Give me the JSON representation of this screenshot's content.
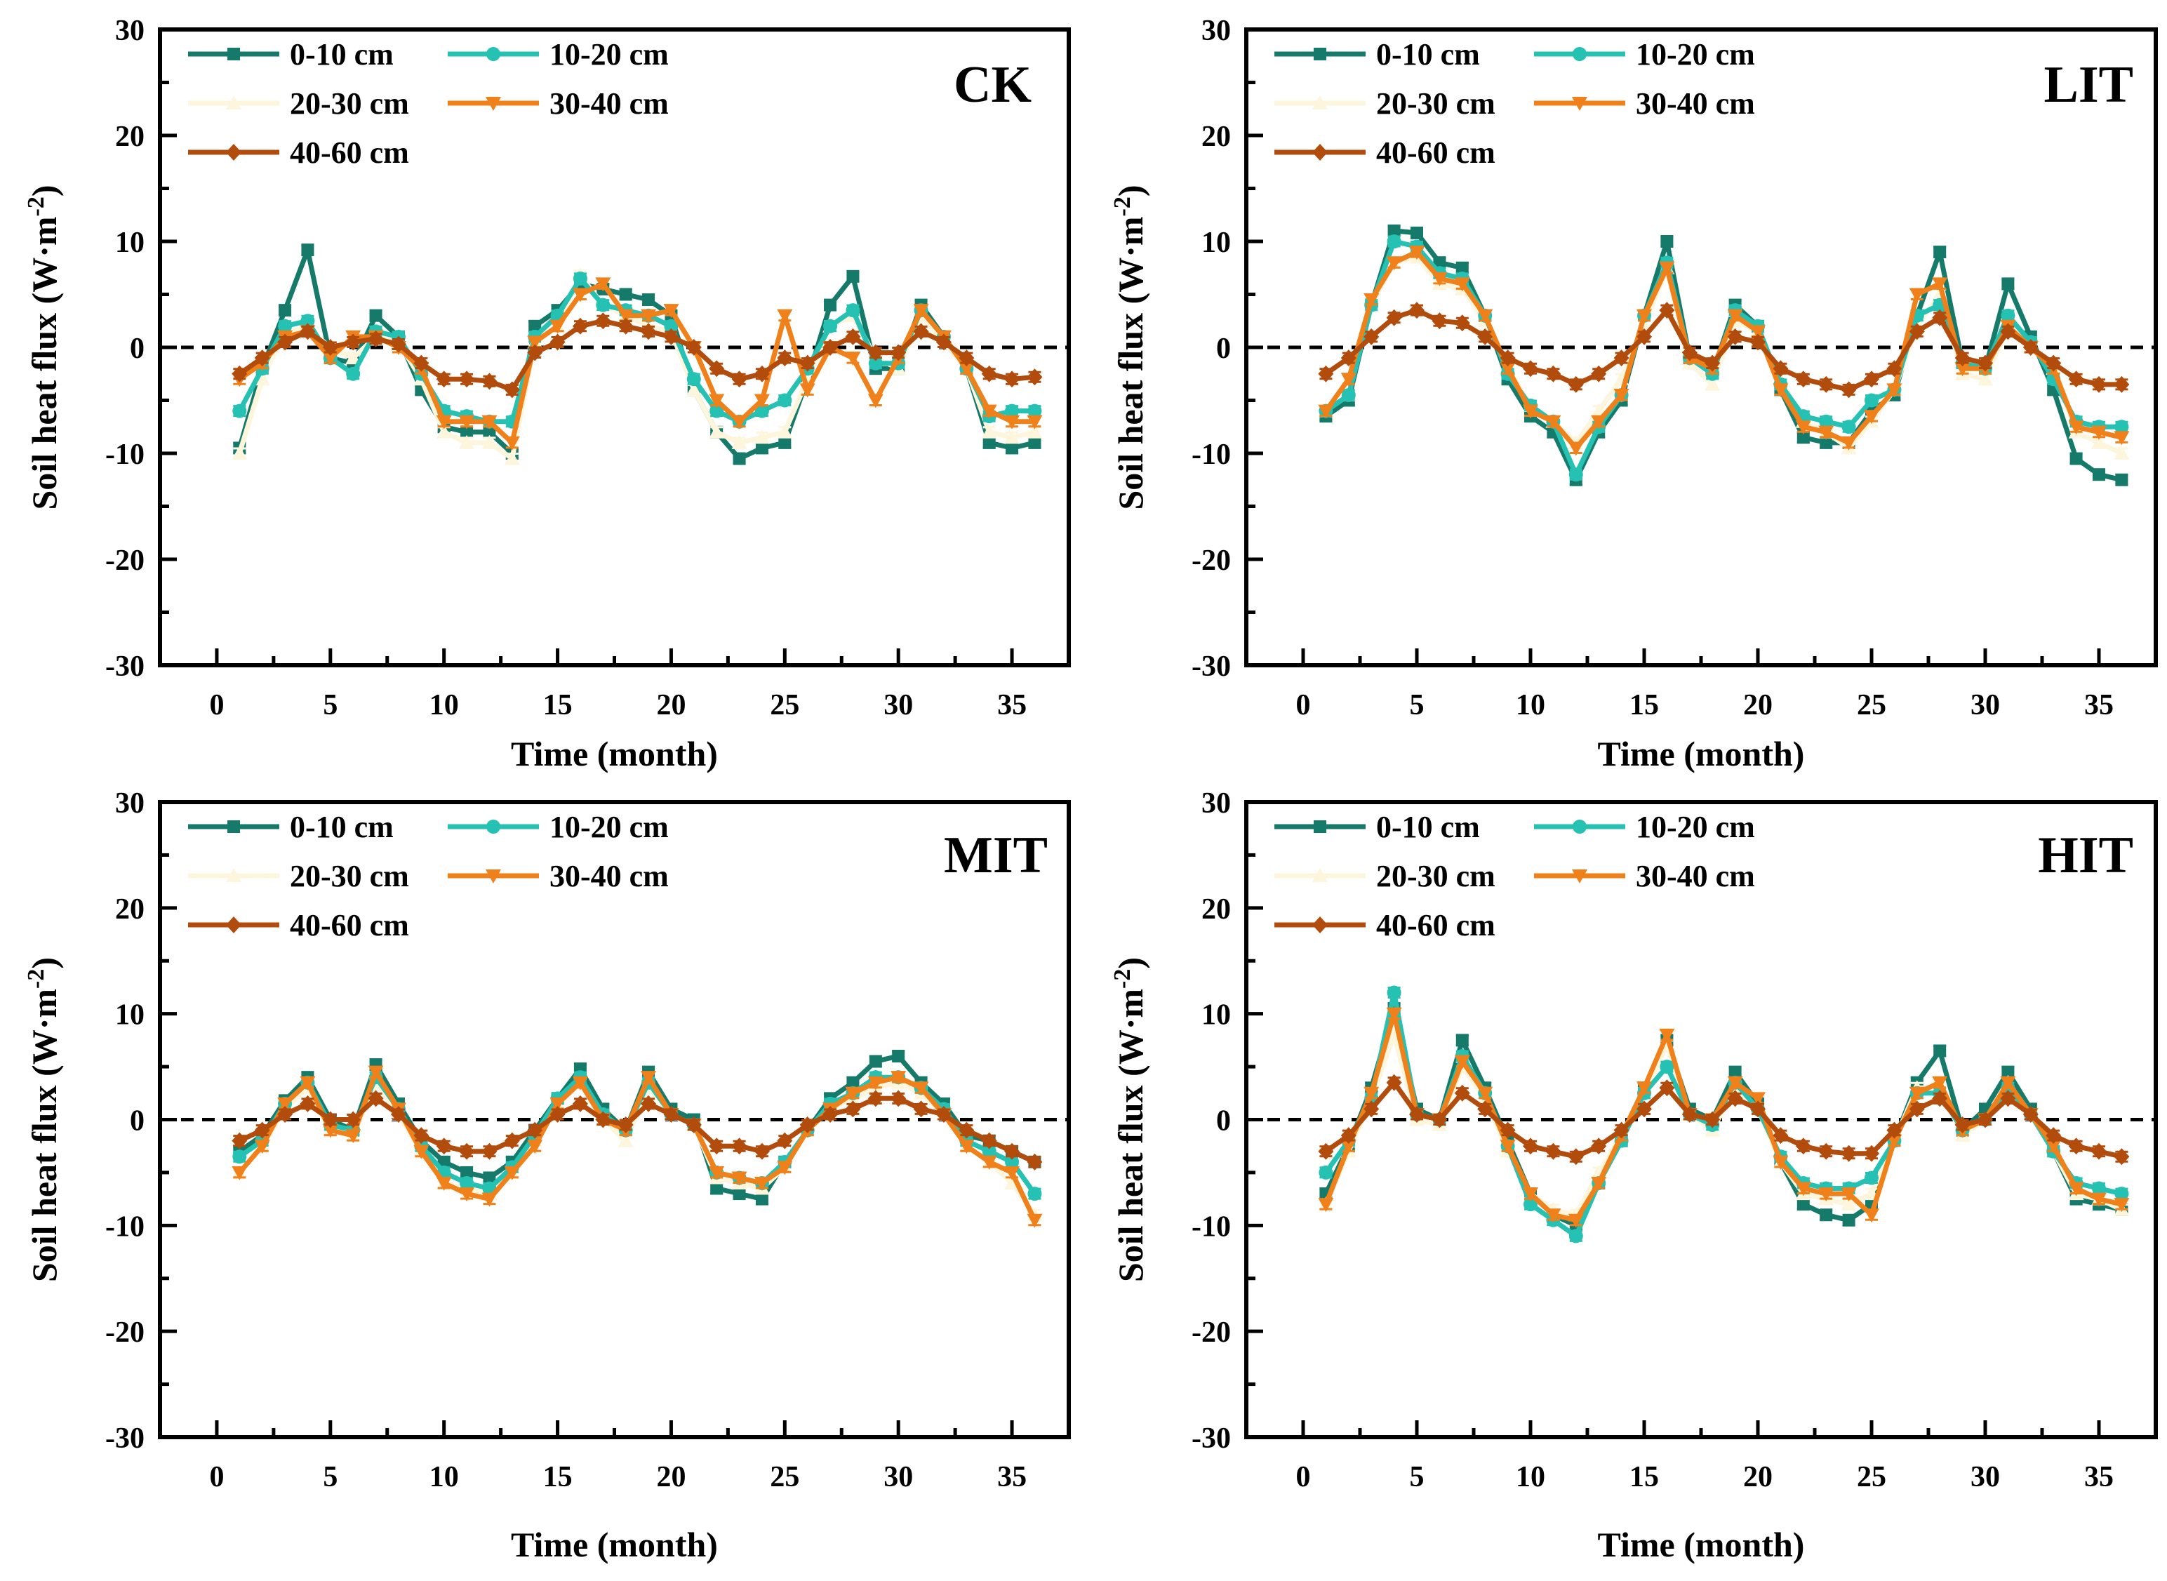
{
  "colors": {
    "0-10 cm": "#167a6b",
    "10-20 cm": "#25c1b3",
    "20-30 cm": "#fdf5dc",
    "30-40 cm": "#f08019",
    "40-60 cm": "#b24c0c"
  },
  "chart_data": [
    {
      "type": "line",
      "title": "CK",
      "xlabel": "Time (month)",
      "ylabel": "Soil heat flux (W·m-2)",
      "ylabel_main": "Soil heat flux (W·m",
      "ylabel_sup": "-2",
      "ylabel_end": ")",
      "xlim": [
        -2.5,
        37.5
      ],
      "ylim": [
        -30,
        30
      ],
      "xticks": [
        "0",
        "5",
        "10",
        "15",
        "20",
        "25",
        "30",
        "35"
      ],
      "yticks": [
        "-30",
        "-20",
        "-10",
        "0",
        "10",
        "20",
        "30"
      ],
      "reference_line": 0,
      "x": [
        1,
        2,
        3,
        4,
        5,
        6,
        7,
        8,
        9,
        10,
        11,
        12,
        13,
        14,
        15,
        16,
        17,
        18,
        19,
        20,
        21,
        22,
        23,
        24,
        25,
        26,
        27,
        28,
        29,
        30,
        31,
        32,
        33,
        34,
        35,
        36
      ],
      "series": [
        {
          "name": "0-10 cm",
          "marker": "square",
          "values": [
            -9.5,
            -2,
            3.5,
            9.2,
            -1,
            -1.5,
            3,
            1,
            -4,
            -7.5,
            -8,
            -8,
            -10,
            2,
            3.5,
            6,
            5.5,
            5,
            4.5,
            3,
            -4,
            -8,
            -10.5,
            -9.5,
            -9,
            -3,
            4,
            6.7,
            -2,
            -2,
            4,
            1,
            -2,
            -9,
            -9.5,
            -9
          ]
        },
        {
          "name": "10-20 cm",
          "marker": "circle",
          "values": [
            -6,
            -2,
            2,
            2.5,
            -1,
            -2.5,
            1.5,
            1,
            -2.5,
            -6,
            -6.5,
            -7,
            -7,
            1,
            3,
            6.5,
            4,
            3.5,
            3,
            2,
            -3,
            -6,
            -7,
            -6,
            -5,
            -2,
            2,
            3.5,
            -1.5,
            -1.5,
            3.5,
            1,
            -2,
            -6.5,
            -6,
            -6
          ]
        },
        {
          "name": "20-30 cm",
          "marker": "triangle-up",
          "values": [
            -10,
            -3,
            1.5,
            1.8,
            0,
            -1,
            1,
            0.5,
            -3,
            -8,
            -9,
            -9,
            -10.5,
            0.5,
            2,
            6.8,
            4,
            3,
            2,
            1.5,
            -4,
            -8,
            -9,
            -8.5,
            -8,
            -3,
            2,
            3,
            -1,
            -2,
            3,
            0.5,
            -2,
            -8,
            -8.5,
            -8
          ]
        },
        {
          "name": "30-40 cm",
          "marker": "triangle-down",
          "values": [
            -3,
            -1.5,
            1,
            1.5,
            -1,
            1,
            1,
            0,
            -2,
            -7,
            -7,
            -7,
            -9,
            0.5,
            2,
            5,
            6,
            3,
            3,
            3.5,
            0,
            -5,
            -7,
            -5,
            3,
            -4,
            0,
            -1,
            -5,
            -1,
            3.5,
            1,
            -2,
            -6,
            -7,
            -7
          ]
        },
        {
          "name": "40-60 cm",
          "marker": "diamond",
          "values": [
            -2.5,
            -1,
            0.5,
            1.5,
            0,
            0.5,
            0.8,
            0.3,
            -1.5,
            -3,
            -3,
            -3.2,
            -4,
            -0.5,
            0.5,
            2,
            2.5,
            2,
            1.5,
            1,
            0,
            -2,
            -3,
            -2.5,
            -1,
            -1.5,
            0,
            1,
            -0.5,
            -0.5,
            1.5,
            0.5,
            -1,
            -2.5,
            -3,
            -2.8
          ]
        }
      ]
    },
    {
      "type": "line",
      "title": "LIT",
      "xlabel": "Time (month)",
      "ylabel": "Soil heat flux (W·m-2)",
      "ylabel_main": "Soil heat flux (W·m",
      "ylabel_sup": "-2",
      "ylabel_end": ")",
      "xlim": [
        -2.5,
        37.5
      ],
      "ylim": [
        -30,
        30
      ],
      "xticks": [
        "0",
        "5",
        "10",
        "15",
        "20",
        "25",
        "30",
        "35"
      ],
      "yticks": [
        "-30",
        "-20",
        "-10",
        "0",
        "10",
        "20",
        "30"
      ],
      "reference_line": 0,
      "x": [
        1,
        2,
        3,
        4,
        5,
        6,
        7,
        8,
        9,
        10,
        11,
        12,
        13,
        14,
        15,
        16,
        17,
        18,
        19,
        20,
        21,
        22,
        23,
        24,
        25,
        26,
        27,
        28,
        29,
        30,
        31,
        32,
        33,
        34,
        35,
        36
      ],
      "series": [
        {
          "name": "0-10 cm",
          "marker": "square",
          "values": [
            -6.5,
            -5,
            4,
            11,
            10.8,
            8,
            7.5,
            3,
            -3,
            -6.5,
            -8,
            -12.5,
            -8,
            -5,
            3,
            10,
            -1,
            -2.5,
            4,
            2,
            -4,
            -8.5,
            -9,
            -9,
            -6,
            -4.5,
            3,
            9,
            -1.5,
            -2,
            6,
            1,
            -4,
            -10.5,
            -12,
            -12.5
          ]
        },
        {
          "name": "10-20 cm",
          "marker": "circle",
          "values": [
            -6,
            -4.5,
            4,
            10,
            9.5,
            7,
            6.5,
            3,
            -2.5,
            -5.5,
            -7,
            -12,
            -7.5,
            -4.5,
            3,
            8,
            -1,
            -2.5,
            3.5,
            2,
            -3.5,
            -6.5,
            -7,
            -7.5,
            -5,
            -4,
            3,
            4,
            -1.5,
            -2,
            3,
            0.5,
            -3,
            -7,
            -7.5,
            -7.5
          ]
        },
        {
          "name": "20-30 cm",
          "marker": "triangle-up",
          "values": [
            -6,
            -4.5,
            4,
            8,
            8.5,
            6,
            5.5,
            2.5,
            -2,
            -5.5,
            -7,
            -9,
            -6,
            -3,
            2,
            7.5,
            -1.5,
            -3.5,
            2.5,
            1.5,
            -3,
            -7,
            -8,
            -9.5,
            -7,
            -4,
            2,
            5,
            -2.5,
            -3,
            2,
            0,
            -2,
            -8,
            -9,
            -10
          ]
        },
        {
          "name": "30-40 cm",
          "marker": "triangle-down",
          "values": [
            -6,
            -3,
            4.5,
            8,
            9,
            6.5,
            6,
            3,
            -2,
            -6,
            -7,
            -9.5,
            -7,
            -4.5,
            3,
            7.5,
            -1,
            -2,
            3,
            1.5,
            -4,
            -7.5,
            -8,
            -9,
            -6.5,
            -4,
            5,
            6,
            -2,
            -2,
            2,
            0,
            -2,
            -7.5,
            -8,
            -8.5
          ]
        },
        {
          "name": "40-60 cm",
          "marker": "diamond",
          "values": [
            -2.5,
            -1,
            1,
            2.8,
            3.5,
            2.5,
            2.3,
            1,
            -1,
            -2,
            -2.5,
            -3.5,
            -2.5,
            -1,
            1,
            3.5,
            -0.5,
            -1.5,
            1,
            0.5,
            -2,
            -3,
            -3.5,
            -4,
            -3,
            -2,
            1.5,
            2.8,
            -1,
            -1.5,
            1.5,
            0,
            -1.5,
            -3,
            -3.5,
            -3.5
          ]
        }
      ]
    },
    {
      "type": "line",
      "title": "MIT",
      "xlabel": "Time (month)",
      "ylabel": "Soil heat flux (W·m-2)",
      "ylabel_main": "Soil heat flux (W·m",
      "ylabel_sup": "-2",
      "ylabel_end": ")",
      "xlim": [
        -2.5,
        37.5
      ],
      "ylim": [
        -30,
        30
      ],
      "xticks": [
        "0",
        "5",
        "10",
        "15",
        "20",
        "25",
        "30",
        "35"
      ],
      "yticks": [
        "-30",
        "-20",
        "-10",
        "0",
        "10",
        "20",
        "30"
      ],
      "reference_line": 0,
      "x": [
        1,
        2,
        3,
        4,
        5,
        6,
        7,
        8,
        9,
        10,
        11,
        12,
        13,
        14,
        15,
        16,
        17,
        18,
        19,
        20,
        21,
        22,
        23,
        24,
        25,
        26,
        27,
        28,
        29,
        30,
        31,
        32,
        33,
        34,
        35,
        36
      ],
      "series": [
        {
          "name": "0-10 cm",
          "marker": "square",
          "values": [
            -3,
            -1.5,
            1.8,
            4,
            0,
            -1,
            5.2,
            1.5,
            -2,
            -4,
            -5,
            -5.5,
            -4,
            -1,
            2,
            4.8,
            1,
            -1,
            4.5,
            1,
            0,
            -6.5,
            -7,
            -7.5,
            -4,
            -1,
            2,
            3.5,
            5.5,
            6,
            3.5,
            1.5,
            -1.5,
            -2,
            -3,
            -4
          ]
        },
        {
          "name": "10-20 cm",
          "marker": "circle",
          "values": [
            -3.5,
            -2,
            1.5,
            3.5,
            -0.5,
            -1,
            4,
            1,
            -2.5,
            -5,
            -6,
            -6.5,
            -4.5,
            -1.5,
            2,
            4,
            0.5,
            -1,
            3.5,
            0.5,
            -0.5,
            -5,
            -5.5,
            -6,
            -4,
            -1,
            1.5,
            2.5,
            4,
            4,
            3,
            1,
            -2,
            -3,
            -4,
            -7
          ]
        },
        {
          "name": "20-30 cm",
          "marker": "triangle-up",
          "values": [
            -5,
            -2.5,
            1,
            3,
            -1,
            -1.5,
            3.5,
            0.5,
            -3,
            -6,
            -6.5,
            -7,
            -5,
            -2,
            1.5,
            3.5,
            0,
            -2,
            3,
            0.5,
            -0.5,
            -5.5,
            -6,
            -6.5,
            -4.5,
            -1,
            1,
            2,
            3,
            3.5,
            2.5,
            0.5,
            -2.5,
            -4,
            -6,
            -9
          ]
        },
        {
          "name": "30-40 cm",
          "marker": "triangle-down",
          "values": [
            -5,
            -2.5,
            1.5,
            3.5,
            -1,
            -1.5,
            4.5,
            1,
            -3,
            -6,
            -7,
            -7.5,
            -5,
            -2.5,
            1.5,
            3.5,
            0,
            -1,
            4,
            0.5,
            -0.5,
            -5,
            -5.5,
            -6,
            -4.5,
            -1,
            1,
            2.5,
            3.5,
            4,
            3,
            0.5,
            -2.5,
            -4,
            -5,
            -9.5
          ]
        },
        {
          "name": "40-60 cm",
          "marker": "diamond",
          "values": [
            -2,
            -1,
            0.5,
            1.5,
            0,
            0,
            2,
            0.5,
            -1.5,
            -2.5,
            -3,
            -3,
            -2,
            -1,
            0.5,
            1.5,
            0,
            -0.5,
            1.5,
            0.5,
            -0.5,
            -2.5,
            -2.5,
            -3,
            -2,
            -0.5,
            0.5,
            1,
            2,
            2,
            1,
            0.5,
            -1,
            -2,
            -3,
            -4
          ]
        }
      ]
    },
    {
      "type": "line",
      "title": "HIT",
      "xlabel": "Time (month)",
      "ylabel": "Soil heat flux (W·m-2)",
      "ylabel_main": "Soil heat flux (W·m",
      "ylabel_sup": "-2",
      "ylabel_end": ")",
      "xlim": [
        -2.5,
        37.5
      ],
      "ylim": [
        -30,
        30
      ],
      "xticks": [
        "0",
        "5",
        "10",
        "15",
        "20",
        "25",
        "30",
        "35"
      ],
      "yticks": [
        "-30",
        "-20",
        "-10",
        "0",
        "10",
        "20",
        "30"
      ],
      "reference_line": 0,
      "x": [
        1,
        2,
        3,
        4,
        5,
        6,
        7,
        8,
        9,
        10,
        11,
        12,
        13,
        14,
        15,
        16,
        17,
        18,
        19,
        20,
        21,
        22,
        23,
        24,
        25,
        26,
        27,
        28,
        29,
        30,
        31,
        32,
        33,
        34,
        35,
        36
      ],
      "series": [
        {
          "name": "0-10 cm",
          "marker": "square",
          "values": [
            -7,
            -2.5,
            3,
            10.5,
            1,
            0,
            7.5,
            3,
            -2,
            -7,
            -9,
            -10,
            -6,
            -2,
            3,
            7.5,
            1,
            0,
            4.5,
            1.5,
            -4,
            -8,
            -9,
            -9.5,
            -8,
            -2,
            3.5,
            6.5,
            -1,
            1,
            4.5,
            1,
            -3,
            -7.5,
            -8,
            -8.5
          ]
        },
        {
          "name": "10-20 cm",
          "marker": "circle",
          "values": [
            -5,
            -2,
            2,
            12,
            0.5,
            0,
            6,
            2.5,
            -2.5,
            -8,
            -9.5,
            -11,
            -6,
            -2,
            2.5,
            5,
            0.5,
            -0.5,
            3.5,
            1,
            -3.5,
            -6,
            -6.5,
            -6.5,
            -5.5,
            -2,
            2.5,
            2.5,
            -1,
            0,
            3,
            0.5,
            -3,
            -6,
            -6.5,
            -7
          ]
        },
        {
          "name": "20-30 cm",
          "marker": "triangle-up",
          "values": [
            -8,
            -3,
            2,
            8,
            0,
            -0.5,
            5,
            2,
            -3,
            -7,
            -8.5,
            -9,
            -5,
            -1.5,
            2.5,
            7,
            0.5,
            -1,
            3,
            1,
            -4,
            -7,
            -7.5,
            -8,
            -7,
            -2,
            3,
            3,
            -1.5,
            0,
            3.5,
            0.5,
            -3,
            -7,
            -7.5,
            -8.5
          ]
        },
        {
          "name": "30-40 cm",
          "marker": "triangle-down",
          "values": [
            -8,
            -2.5,
            2.5,
            10,
            0.5,
            0,
            5.5,
            2.5,
            -2.5,
            -7,
            -9,
            -9.5,
            -6,
            -1.5,
            3,
            8,
            0.5,
            0,
            3.5,
            2,
            -4,
            -6.5,
            -7,
            -7,
            -9,
            -2,
            2.5,
            3.5,
            -1,
            0,
            3.5,
            0.5,
            -2.5,
            -6.5,
            -7.5,
            -8
          ]
        },
        {
          "name": "40-60 cm",
          "marker": "diamond",
          "values": [
            -3,
            -1.5,
            1,
            3.5,
            0.5,
            0,
            2.5,
            1,
            -1,
            -2.5,
            -3,
            -3.5,
            -2.5,
            -1,
            1,
            3,
            0.5,
            0,
            2,
            1,
            -1.5,
            -2.5,
            -3,
            -3.2,
            -3.2,
            -1,
            1,
            2,
            -0.5,
            0,
            2,
            0.5,
            -1.5,
            -2.5,
            -3,
            -3.5
          ]
        }
      ]
    }
  ]
}
